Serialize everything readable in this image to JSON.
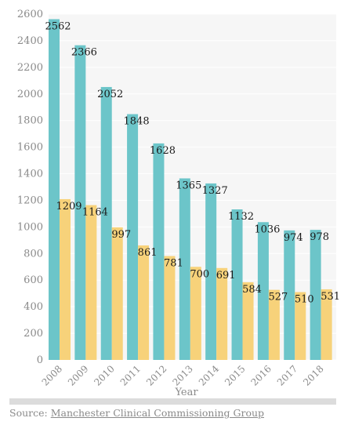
{
  "chart_data": {
    "type": "bar",
    "xlabel": "Year",
    "ylabel": "",
    "ylim": [
      0,
      2600
    ],
    "yticks": [
      0,
      200,
      400,
      600,
      800,
      1000,
      1200,
      1400,
      1600,
      1800,
      2000,
      2200,
      2400,
      2600
    ],
    "categories": [
      "2008",
      "2009",
      "2010",
      "2011",
      "2012",
      "2013",
      "2014",
      "2015",
      "2016",
      "2017",
      "2018"
    ],
    "series": [
      {
        "values": [
          2562,
          2366,
          2052,
          1848,
          1628,
          1365,
          1327,
          1132,
          1036,
          974,
          978
        ],
        "color": "#6cc5c9"
      },
      {
        "values": [
          1209,
          1164,
          997,
          861,
          781,
          700,
          691,
          584,
          527,
          510,
          531
        ],
        "color": "#f7d27a"
      }
    ],
    "grid": true,
    "plot_background": "#f6f6f6",
    "gridline_color": "#ffffff"
  },
  "source": {
    "prefix": "Source: ",
    "link_text": "Manchester Clinical Commissioning Group"
  }
}
